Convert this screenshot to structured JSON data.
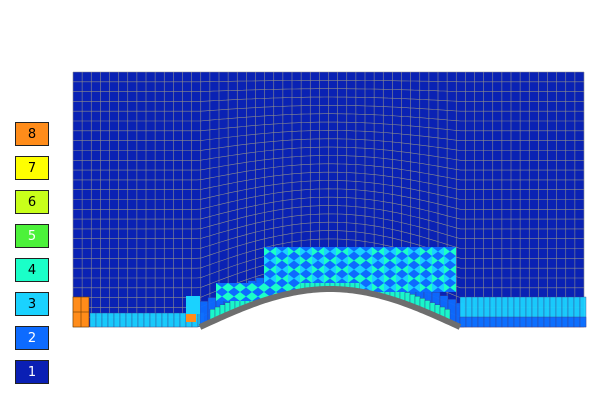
{
  "legend": {
    "levels": [
      {
        "label": "8",
        "color": "#ff8c1a",
        "text_color": "#000000"
      },
      {
        "label": "7",
        "color": "#ffff00",
        "text_color": "#000000"
      },
      {
        "label": "6",
        "color": "#c8ff1a",
        "text_color": "#000000"
      },
      {
        "label": "5",
        "color": "#4cf23a",
        "text_color": "#ffffff"
      },
      {
        "label": "4",
        "color": "#1affc8",
        "text_color": "#000000"
      },
      {
        "label": "3",
        "color": "#1ad2ff",
        "text_color": "#000000"
      },
      {
        "label": "2",
        "color": "#0d6bff",
        "text_color": "#ffffff"
      },
      {
        "label": "1",
        "color": "#0a1fb4",
        "text_color": "#ffffff"
      }
    ]
  },
  "mesh": {
    "background_color": "#0a22b4",
    "grid_color": "#8c8c8c",
    "bump_color": "#6e6e6e"
  }
}
